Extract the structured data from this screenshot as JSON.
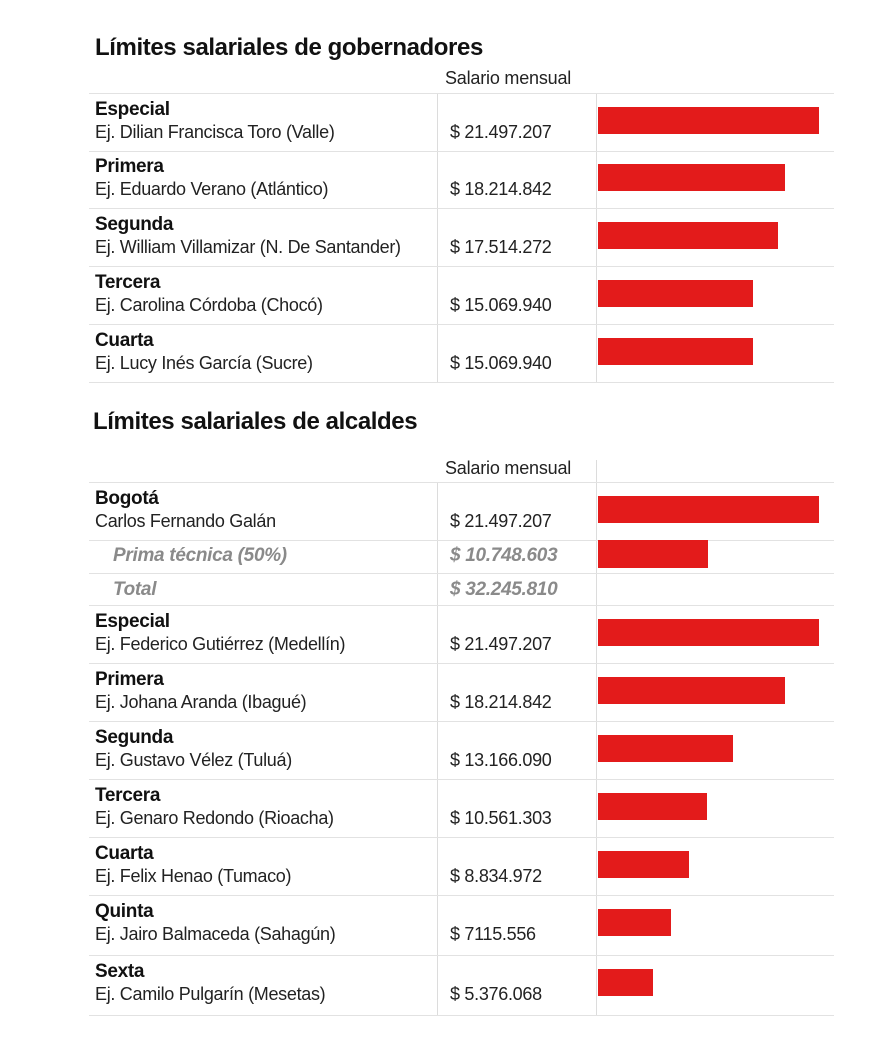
{
  "chart_data": [
    {
      "type": "bar",
      "title": "Límites salariales de gobernadores",
      "column_header": "Salario mensual",
      "bar_color": "#e31b1b",
      "xlim": [
        0,
        21497207
      ],
      "rows": [
        {
          "category": "Especial",
          "example": "Ej. Dilian Francisca Toro (Valle)",
          "value": 21497207,
          "label": "$ 21.497.207"
        },
        {
          "category": "Primera",
          "example": "Ej. Eduardo Verano (Atlántico)",
          "value": 18214842,
          "label": "$ 18.214.842"
        },
        {
          "category": "Segunda",
          "example": "Ej. William Villamizar (N. De Santander)",
          "value": 17514272,
          "label": "$ 17.514.272"
        },
        {
          "category": "Tercera",
          "example": "Ej. Carolina Córdoba (Chocó)",
          "value": 15069940,
          "label": "$ 15.069.940"
        },
        {
          "category": "Cuarta",
          "example": "Ej. Lucy Inés García (Sucre)",
          "value": 15069940,
          "label": "$ 15.069.940"
        }
      ]
    },
    {
      "type": "bar",
      "title": "Límites salariales de alcaldes",
      "column_header": "Salario mensual",
      "bar_color": "#e31b1b",
      "xlim": [
        0,
        21497207
      ],
      "rows": [
        {
          "category": "Bogotá",
          "example": "Carlos Fernando Galán",
          "value": 21497207,
          "label": "$ 21.497.207"
        },
        {
          "category": "Prima técnica (50%)",
          "sub": true,
          "value": 10748603,
          "label": "$ 10.748.603"
        },
        {
          "category": "Total",
          "sub": true,
          "value": 32245810,
          "label": "$ 32.245.810",
          "no_bar": true
        },
        {
          "category": "Especial",
          "example": "Ej. Federico Gutiérrez (Medellín)",
          "value": 21497207,
          "label": "$ 21.497.207"
        },
        {
          "category": "Primera",
          "example": "Ej. Johana Aranda (Ibagué)",
          "value": 18214842,
          "label": "$ 18.214.842"
        },
        {
          "category": "Segunda",
          "example": "Ej. Gustavo Vélez (Tuluá)",
          "value": 13166090,
          "label": "$ 13.166.090"
        },
        {
          "category": "Tercera",
          "example": "Ej. Genaro Redondo (Rioacha)",
          "value": 10561303,
          "label": "$ 10.561.303"
        },
        {
          "category": "Cuarta",
          "example": "Ej. Felix Henao (Tumaco)",
          "value": 8834972,
          "label": "$ 8.834.972"
        },
        {
          "category": "Quinta",
          "example": "Ej. Jairo Balmaceda (Sahagún)",
          "value": 7115556,
          "label": "$ 7115.556"
        },
        {
          "category": "Sexta",
          "example": "Ej. Camilo Pulgarín (Mesetas)",
          "value": 5376068,
          "label": "$ 5.376.068"
        }
      ]
    }
  ]
}
